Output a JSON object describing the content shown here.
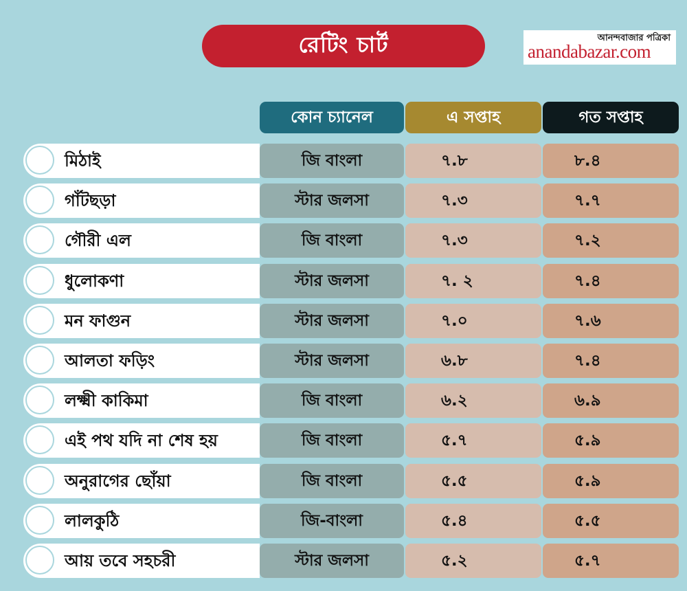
{
  "title": "রেটিং চার্ট",
  "brand": {
    "bengali": "আনন্দবাজার পত্রিকা",
    "site": "anandabazar.com"
  },
  "headers": {
    "channel": "কোন চ্যানেল",
    "this_week": "এ সপ্তাহ",
    "last_week": "গত সপ্তাহ"
  },
  "colors": {
    "background": "#a9d6dd",
    "title": "#c3202f",
    "header_channel": "#1f6c7e",
    "header_this_week": "#a68930",
    "header_last_week": "#0d1a1d",
    "cell_channel": "#94adac",
    "cell_this_week": "#d6bcad",
    "cell_last_week": "#cfa58a"
  },
  "chart_data": {
    "type": "table",
    "title": "রেটিং চার্ট",
    "columns": [
      "",
      "কোন চ্যানেল",
      "এ সপ্তাহ",
      "গত সপ্তাহ"
    ],
    "rows": [
      {
        "show": "মিঠাই",
        "channel": "জি বাংলা",
        "this_week": "৭.৮",
        "last_week": "৮.৪"
      },
      {
        "show": "গাঁটছড়া",
        "channel": "স্টার জলসা",
        "this_week": "৭.৩",
        "last_week": "৭.৭"
      },
      {
        "show": "গৌরী এল",
        "channel": "জি বাংলা",
        "this_week": "৭.৩",
        "last_week": "৭.২"
      },
      {
        "show": "ধুলোকণা",
        "channel": "স্টার জলসা",
        "this_week": "৭. ২",
        "last_week": "৭.৪"
      },
      {
        "show": "মন ফাগুন",
        "channel": "স্টার জলসা",
        "this_week": "৭.০",
        "last_week": "৭.৬"
      },
      {
        "show": "আলতা ফড়িং",
        "channel": "স্টার জলসা",
        "this_week": "৬.৮",
        "last_week": "৭.৪"
      },
      {
        "show": "লক্ষ্মী কাকিমা",
        "channel": "জি বাংলা",
        "this_week": "৬.২",
        "last_week": "৬.৯"
      },
      {
        "show": "এই পথ যদি না শেষ হয়",
        "channel": "জি বাংলা",
        "this_week": "৫.৭",
        "last_week": "৫.৯"
      },
      {
        "show": "অনুরাগের ছোঁয়া",
        "channel": "জি বাংলা",
        "this_week": "৫.৫",
        "last_week": "৫.৯"
      },
      {
        "show": "লালকুঠি",
        "channel": "জি-বাংলা",
        "this_week": "৫.৪",
        "last_week": "৫.৫"
      },
      {
        "show": "আয় তবে সহচরী",
        "channel": "স্টার জলসা",
        "this_week": "৫.২",
        "last_week": "৫.৭"
      }
    ]
  }
}
